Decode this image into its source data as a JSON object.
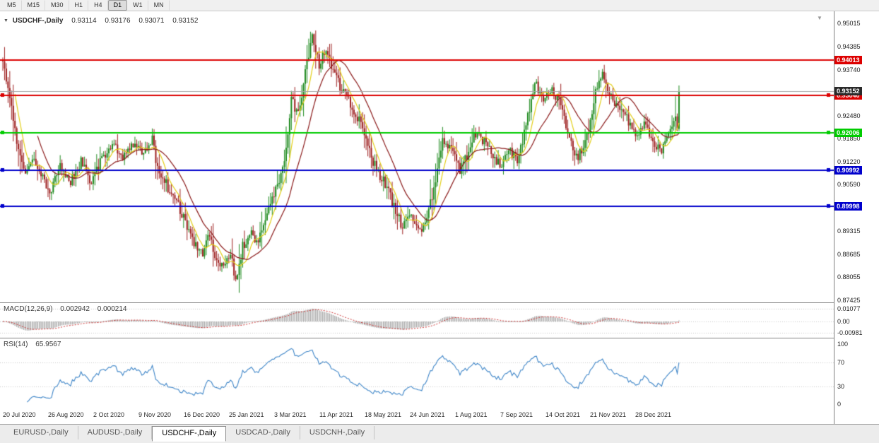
{
  "icons": {
    "collapse": "▼",
    "shift": "▼"
  },
  "toolbar": {
    "timeframes": [
      {
        "label": "M5",
        "active": false
      },
      {
        "label": "M15",
        "active": false
      },
      {
        "label": "M30",
        "active": false
      },
      {
        "label": "H1",
        "active": false
      },
      {
        "label": "H4",
        "active": false
      },
      {
        "label": "D1",
        "active": true
      },
      {
        "label": "W1",
        "active": false
      },
      {
        "label": "MN",
        "active": false
      }
    ]
  },
  "chart_header": {
    "title": "USDCHF-,Daily",
    "open": "0.93114",
    "high": "0.93176",
    "low": "0.93071",
    "close": "0.93152"
  },
  "bottom_tabs": [
    {
      "label": "EURUSD-,Daily",
      "active": false
    },
    {
      "label": "AUDUSD-,Daily",
      "active": false
    },
    {
      "label": "USDCHF-,Daily",
      "active": true
    },
    {
      "label": "USDCAD-,Daily",
      "active": false
    },
    {
      "label": "USDCNH-,Daily",
      "active": false
    }
  ],
  "chart_data": {
    "type": "candlestick",
    "symbol": "USDCHF",
    "timeframe": "Daily",
    "num_candles": 390,
    "label_every": 26,
    "x_labels": [
      "20 Jul 2020",
      "26 Aug 2020",
      "2 Oct 2020",
      "9 Nov 2020",
      "16 Dec 2020",
      "25 Jan 2021",
      "3 Mar 2021",
      "11 Apr 2021",
      "18 May 2021",
      "24 Jun 2021",
      "1 Aug 2021",
      "7 Sep 2021",
      "14 Oct 2021",
      "21 Nov 2021",
      "28 Dec 2021"
    ],
    "price_axis": {
      "ticks": [
        "0.95015",
        "0.94385",
        "0.93740",
        "0.93110",
        "0.92480",
        "0.91850",
        "0.91220",
        "0.90590",
        "0.89960",
        "0.89315",
        "0.88685",
        "0.88055",
        "0.87425"
      ],
      "tick_values": [
        0.95015,
        0.94385,
        0.9374,
        0.9311,
        0.9248,
        0.9185,
        0.9122,
        0.9059,
        0.8996,
        0.89315,
        0.88685,
        0.88055,
        0.87425
      ]
    },
    "levels": [
      {
        "price": 0.94013,
        "label": "0.94013",
        "color": "#dd0000",
        "handles": false
      },
      {
        "price": 0.9304,
        "label": "0.93040",
        "color": "#dd0000",
        "handles": true
      },
      {
        "price": 0.92006,
        "label": "0.92006",
        "color": "#00cc00",
        "handles": true
      },
      {
        "price": 0.90992,
        "label": "0.90992",
        "color": "#0000cc",
        "handles": true
      },
      {
        "price": 0.89998,
        "label": "0.89998",
        "color": "#0000cc",
        "handles": true
      }
    ],
    "current_price": {
      "value": 0.93152,
      "label": "0.93152"
    },
    "overlays": [
      {
        "type": "sma",
        "period": 8,
        "color": "#e3cf16"
      },
      {
        "type": "sma",
        "period": 21,
        "color": "#8b1a1a"
      }
    ],
    "macd": {
      "label": "MACD(12,26,9)",
      "value": "0.002942",
      "signal_value": "0.000214",
      "ticks": [
        {
          "label": "0.01077",
          "value": 0.01077
        },
        {
          "label": "0.00",
          "value": 0
        },
        {
          "label": "-0.00981",
          "value": -0.00981
        }
      ]
    },
    "rsi": {
      "label": "RSI(14)",
      "value": "65.9567",
      "levels": [
        70,
        30
      ],
      "ticks": [
        {
          "label": "100",
          "value": 100
        },
        {
          "label": "70",
          "value": 70
        },
        {
          "label": "30",
          "value": 30
        },
        {
          "label": "0",
          "value": 0
        }
      ]
    },
    "colors": {
      "up": "#1f8b1f",
      "down": "#9e2121",
      "macd_hist": "#a8a8a8",
      "macd_signal": "#cc3333",
      "rsi": "#3d85c8",
      "current_line": "#a6a6a6",
      "current_label_bg": "#2a2a2a",
      "grid_dotted": "#c9c9c9"
    },
    "price_path": [
      [
        0,
        0.94
      ],
      [
        3,
        0.933
      ],
      [
        6,
        0.923
      ],
      [
        9,
        0.916
      ],
      [
        12,
        0.9095
      ],
      [
        18,
        0.913
      ],
      [
        22,
        0.908
      ],
      [
        28,
        0.9042
      ],
      [
        33,
        0.911
      ],
      [
        39,
        0.907
      ],
      [
        45,
        0.912
      ],
      [
        51,
        0.9062
      ],
      [
        57,
        0.913
      ],
      [
        63,
        0.9175
      ],
      [
        69,
        0.913
      ],
      [
        75,
        0.9175
      ],
      [
        81,
        0.9145
      ],
      [
        86,
        0.9185
      ],
      [
        89,
        0.9105
      ],
      [
        94,
        0.906
      ],
      [
        100,
        0.901
      ],
      [
        105,
        0.896
      ],
      [
        110,
        0.89
      ],
      [
        115,
        0.8868
      ],
      [
        119,
        0.892
      ],
      [
        122,
        0.886
      ],
      [
        127,
        0.8825
      ],
      [
        131,
        0.888
      ],
      [
        134,
        0.8795
      ],
      [
        138,
        0.889
      ],
      [
        143,
        0.892
      ],
      [
        147,
        0.89
      ],
      [
        152,
        0.899
      ],
      [
        158,
        0.906
      ],
      [
        162,
        0.913
      ],
      [
        166,
        0.929
      ],
      [
        170,
        0.925
      ],
      [
        174,
        0.937
      ],
      [
        178,
        0.9458
      ],
      [
        182,
        0.939
      ],
      [
        186,
        0.9428
      ],
      [
        191,
        0.936
      ],
      [
        196,
        0.931
      ],
      [
        201,
        0.927
      ],
      [
        206,
        0.923
      ],
      [
        210,
        0.916
      ],
      [
        215,
        0.91
      ],
      [
        220,
        0.906
      ],
      [
        226,
        0.899
      ],
      [
        230,
        0.8938
      ],
      [
        235,
        0.8975
      ],
      [
        240,
        0.8938
      ],
      [
        244,
        0.8962
      ],
      [
        249,
        0.907
      ],
      [
        253,
        0.918
      ],
      [
        258,
        0.916
      ],
      [
        263,
        0.9092
      ],
      [
        267,
        0.914
      ],
      [
        272,
        0.9198
      ],
      [
        277,
        0.918
      ],
      [
        283,
        0.913
      ],
      [
        287,
        0.9112
      ],
      [
        291,
        0.9158
      ],
      [
        296,
        0.9122
      ],
      [
        301,
        0.922
      ],
      [
        306,
        0.9338
      ],
      [
        311,
        0.93
      ],
      [
        316,
        0.9318
      ],
      [
        321,
        0.928
      ],
      [
        326,
        0.918
      ],
      [
        331,
        0.913
      ],
      [
        337,
        0.921
      ],
      [
        341,
        0.9318
      ],
      [
        345,
        0.9355
      ],
      [
        349,
        0.93
      ],
      [
        354,
        0.9278
      ],
      [
        359,
        0.924
      ],
      [
        364,
        0.919
      ],
      [
        369,
        0.922
      ],
      [
        374,
        0.918
      ],
      [
        379,
        0.9148
      ],
      [
        384,
        0.92
      ],
      [
        388,
        0.9245
      ],
      [
        389,
        0.9315
      ]
    ]
  }
}
